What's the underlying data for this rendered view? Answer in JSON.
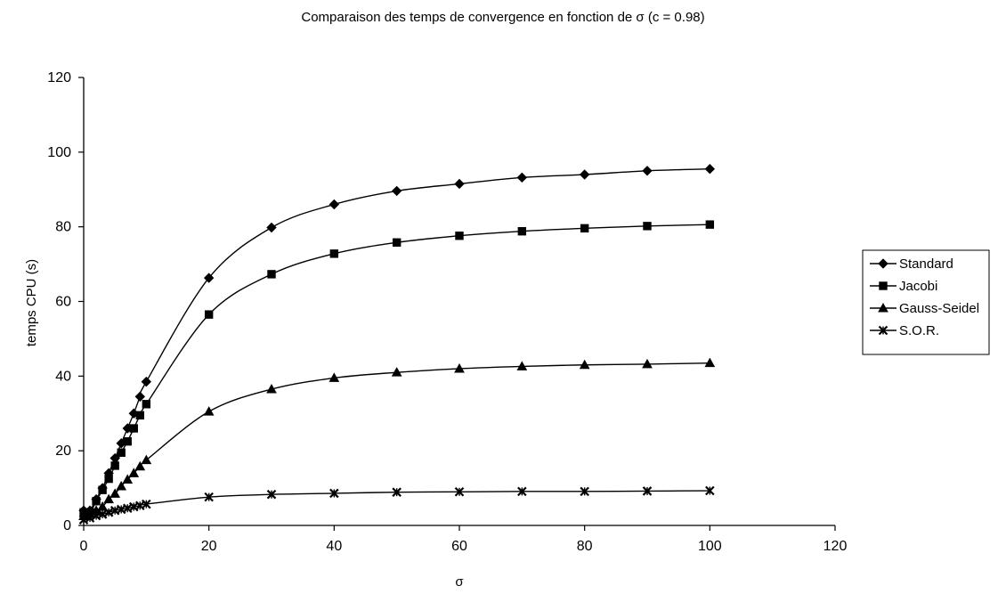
{
  "chart_data": {
    "type": "line",
    "title": "Comparaison des temps de convergence en fonction de σ (c = 0.98)",
    "xlabel": "σ",
    "ylabel": "temps CPU (s)",
    "xlim": [
      0,
      120
    ],
    "ylim": [
      0,
      120
    ],
    "x_ticks": [
      0,
      20,
      40,
      60,
      80,
      100,
      120
    ],
    "y_ticks": [
      0,
      20,
      40,
      60,
      80,
      100,
      120
    ],
    "grid": false,
    "legend_position": "right",
    "series": [
      {
        "name": "Standard",
        "marker": "diamond",
        "x": [
          0,
          1,
          2,
          3,
          4,
          5,
          6,
          7,
          8,
          9,
          10,
          20,
          30,
          40,
          50,
          60,
          70,
          80,
          90,
          100
        ],
        "y": [
          4,
          4,
          7,
          10,
          14,
          18,
          22,
          26,
          30,
          34.5,
          38.5,
          66.3,
          79.8,
          86,
          89.6,
          91.5,
          93.2,
          94,
          95,
          95.5
        ]
      },
      {
        "name": "Jacobi",
        "marker": "square",
        "x": [
          0,
          1,
          2,
          3,
          4,
          5,
          6,
          7,
          8,
          9,
          10,
          20,
          30,
          40,
          50,
          60,
          70,
          80,
          90,
          100
        ],
        "y": [
          3.5,
          3.5,
          6.5,
          9.5,
          12.5,
          16,
          19.5,
          22.5,
          26,
          29.5,
          32.5,
          56.5,
          67.3,
          72.8,
          75.8,
          77.6,
          78.8,
          79.6,
          80.2,
          80.6
        ]
      },
      {
        "name": "Gauss-Seidel",
        "marker": "triangle",
        "x": [
          0,
          1,
          2,
          3,
          4,
          5,
          6,
          7,
          8,
          9,
          10,
          20,
          30,
          40,
          50,
          60,
          70,
          80,
          90,
          100
        ],
        "y": [
          2.5,
          3,
          4,
          5,
          7,
          8.5,
          10.5,
          12.3,
          14,
          15.8,
          17.5,
          30.5,
          36.5,
          39.5,
          41,
          42,
          42.6,
          43,
          43.2,
          43.5
        ]
      },
      {
        "name": "S.O.R.",
        "marker": "x-star",
        "x": [
          0,
          1,
          2,
          3,
          4,
          5,
          6,
          7,
          8,
          9,
          10,
          20,
          30,
          40,
          50,
          60,
          70,
          80,
          90,
          100
        ],
        "y": [
          1.5,
          2,
          2.6,
          3,
          3.5,
          4,
          4.3,
          4.6,
          5,
          5.3,
          5.7,
          7.6,
          8.3,
          8.6,
          8.9,
          9,
          9.1,
          9.1,
          9.2,
          9.3
        ]
      }
    ]
  }
}
